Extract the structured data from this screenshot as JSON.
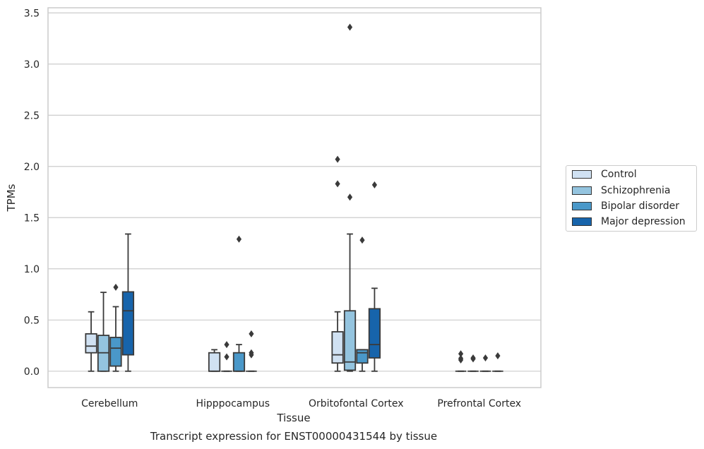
{
  "chart_data": {
    "type": "box",
    "title": "Transcript expression for ENST00000431544 by tissue",
    "xlabel": "Tissue",
    "ylabel": "TPMs",
    "ylim": [
      -0.16,
      3.55
    ],
    "yticks": [
      "0.0",
      "0.5",
      "1.0",
      "1.5",
      "2.0",
      "2.5",
      "3.0",
      "3.5"
    ],
    "categories": [
      "Cerebellum",
      "Hipppocampus",
      "Orbitofontal Cortex",
      "Prefrontal Cortex"
    ],
    "grid": true,
    "legend_position": "right",
    "series": [
      {
        "name": "Control",
        "color": "#d0e1f2",
        "boxes": [
          {
            "min": 0.0,
            "q1": 0.18,
            "median": 0.245,
            "q3": 0.365,
            "max": 0.58,
            "outliers": []
          },
          {
            "min": 0.0,
            "q1": 0.0,
            "median": 0.0,
            "q3": 0.18,
            "max": 0.21,
            "outliers": []
          },
          {
            "min": 0.0,
            "q1": 0.08,
            "median": 0.16,
            "q3": 0.385,
            "max": 0.58,
            "outliers": [
              1.83,
              2.07
            ]
          },
          {
            "min": 0.0,
            "q1": 0.0,
            "median": 0.0,
            "q3": 0.0,
            "max": 0.0,
            "outliers": [
              0.11,
              0.125,
              0.17
            ]
          }
        ]
      },
      {
        "name": "Schizophrenia",
        "color": "#94c4df",
        "boxes": [
          {
            "min": 0.0,
            "q1": 0.0,
            "median": 0.18,
            "q3": 0.35,
            "max": 0.77,
            "outliers": []
          },
          {
            "min": 0.0,
            "q1": 0.0,
            "median": 0.0,
            "q3": 0.0,
            "max": 0.0,
            "outliers": [
              0.14,
              0.26
            ]
          },
          {
            "min": 0.0,
            "q1": 0.01,
            "median": 0.09,
            "q3": 0.59,
            "max": 1.34,
            "outliers": [
              1.7,
              3.36
            ]
          },
          {
            "min": 0.0,
            "q1": 0.0,
            "median": 0.0,
            "q3": 0.0,
            "max": 0.0,
            "outliers": [
              0.12,
              0.13
            ]
          }
        ]
      },
      {
        "name": "Bipolar disorder",
        "color": "#4a98c9",
        "boxes": [
          {
            "min": 0.0,
            "q1": 0.05,
            "median": 0.225,
            "q3": 0.33,
            "max": 0.63,
            "outliers": [
              0.82
            ]
          },
          {
            "min": 0.0,
            "q1": 0.0,
            "median": 0.0,
            "q3": 0.18,
            "max": 0.26,
            "outliers": [
              1.29
            ]
          },
          {
            "min": 0.0,
            "q1": 0.08,
            "median": 0.18,
            "q3": 0.21,
            "max": 0.21,
            "outliers": [
              1.28
            ]
          },
          {
            "min": 0.0,
            "q1": 0.0,
            "median": 0.0,
            "q3": 0.0,
            "max": 0.0,
            "outliers": [
              0.13
            ]
          }
        ]
      },
      {
        "name": "Major depression",
        "color": "#1764ab",
        "boxes": [
          {
            "min": 0.0,
            "q1": 0.16,
            "median": 0.59,
            "q3": 0.775,
            "max": 1.34,
            "outliers": []
          },
          {
            "min": 0.0,
            "q1": 0.0,
            "median": 0.0,
            "q3": 0.0,
            "max": 0.0,
            "outliers": [
              0.16,
              0.18,
              0.365
            ]
          },
          {
            "min": 0.0,
            "q1": 0.13,
            "median": 0.26,
            "q3": 0.61,
            "max": 0.81,
            "outliers": [
              1.82
            ]
          },
          {
            "min": 0.0,
            "q1": 0.0,
            "median": 0.0,
            "q3": 0.0,
            "max": 0.0,
            "outliers": [
              0.15
            ]
          }
        ]
      }
    ]
  }
}
